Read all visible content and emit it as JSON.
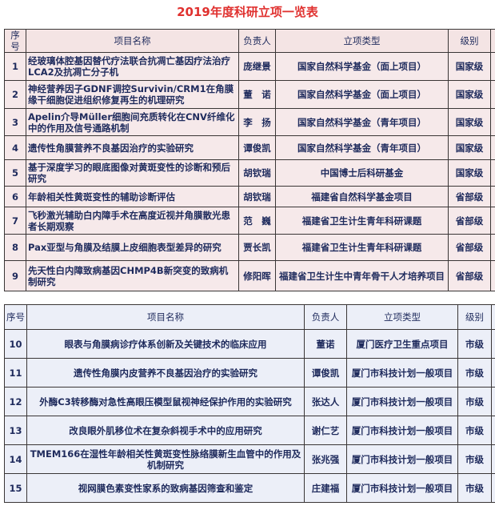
{
  "title": "2019年度科研立项一览表",
  "headers": {
    "no": "序号",
    "name": "项目名称",
    "person": "负责人",
    "type": "立项类型",
    "level": "级别"
  },
  "table1": [
    {
      "no": "1",
      "name": "经玻璃体腔基因替代疗法联合抗凋亡基因疗法治疗LCA2及抗凋亡分子机",
      "person": "庞继景",
      "type": "国家自然科学基金（面上项目）",
      "level": "国家级"
    },
    {
      "no": "2",
      "name": "神经营养因子GDNF调控Survivin/CRM1在角膜缘干细胞促进组织修复再生的机理研究",
      "person": "董　诺",
      "type": "国家自然科学基金（面上项目）",
      "level": "国家级"
    },
    {
      "no": "3",
      "name": "Apelin介导Müller细胞间充质转化在CNV纤维化中的作用及信号通路机制",
      "person": "李　扬",
      "type": "国家自然科学基金（青年项目）",
      "level": "国家级"
    },
    {
      "no": "4",
      "name": "遗传性角膜营养不良基因治疗的实验研究",
      "person": "谭俊凯",
      "type": "国家自然科学基金（青年项目）",
      "level": "国家级"
    },
    {
      "no": "5",
      "name": "基于深度学习的眼底图像对黄斑变性的诊断和预后研究",
      "person": "胡钦瑞",
      "type": "中国博士后科研基金",
      "level": "国家级"
    },
    {
      "no": "6",
      "name": "年龄相关性黄斑变性的辅助诊断评估",
      "person": "胡钦瑞",
      "type": "福建省自然科学基金项目",
      "level": "省部级"
    },
    {
      "no": "7",
      "name": "飞秒激光辅助白内障手术在高度近视并角膜散光患者长期观察",
      "person": "范　巍",
      "type": "福建省卫生计生青年科研课题",
      "level": "省部级"
    },
    {
      "no": "8",
      "name": "Pax亚型与角膜及结膜上皮细胞表型差异的研究",
      "person": "贾长凯",
      "type": "福建省卫生计生青年科研课题",
      "level": "省部级"
    },
    {
      "no": "9",
      "name": "先天性白内障致病基因CHMP4B新突变的致病机制研究",
      "person": "修阳晖",
      "type": "福建省卫生计生中青年骨干人才培养项目",
      "level": "省部级"
    }
  ],
  "table2": [
    {
      "no": "10",
      "name": "眼表与角膜病诊疗体系创新及关键技术的临床应用",
      "person": "董诺",
      "type": "厦门医疗卫生重点项目",
      "level": "市级"
    },
    {
      "no": "11",
      "name": "遗传性角膜内皮营养不良基因治疗的实验研究",
      "person": "谭俊凯",
      "type": "厦门市科技计划一般项目",
      "level": "市级"
    },
    {
      "no": "12",
      "name": "外酶C3转移酶对急性高眼压模型鼠视神经保护作用的实验研究",
      "person": "张达人",
      "type": "厦门市科技计划一般项目",
      "level": "市级"
    },
    {
      "no": "13",
      "name": "改良眼外肌移位术在复杂斜视手术中的应用研究",
      "person": "谢仁艺",
      "type": "厦门市科技计划一般项目",
      "level": "市级"
    },
    {
      "no": "14",
      "name": "TMEM166在湿性年龄相关性黄斑变性脉络膜新生血管中的作用及机制研究",
      "person": "张兆强",
      "type": "厦门市科技计划一般项目",
      "level": "市级"
    },
    {
      "no": "15",
      "name": "视网膜色素变性家系的致病基因筛查和鉴定",
      "person": "庄建福",
      "type": "厦门市科技计划一般项目",
      "level": "市级"
    }
  ]
}
